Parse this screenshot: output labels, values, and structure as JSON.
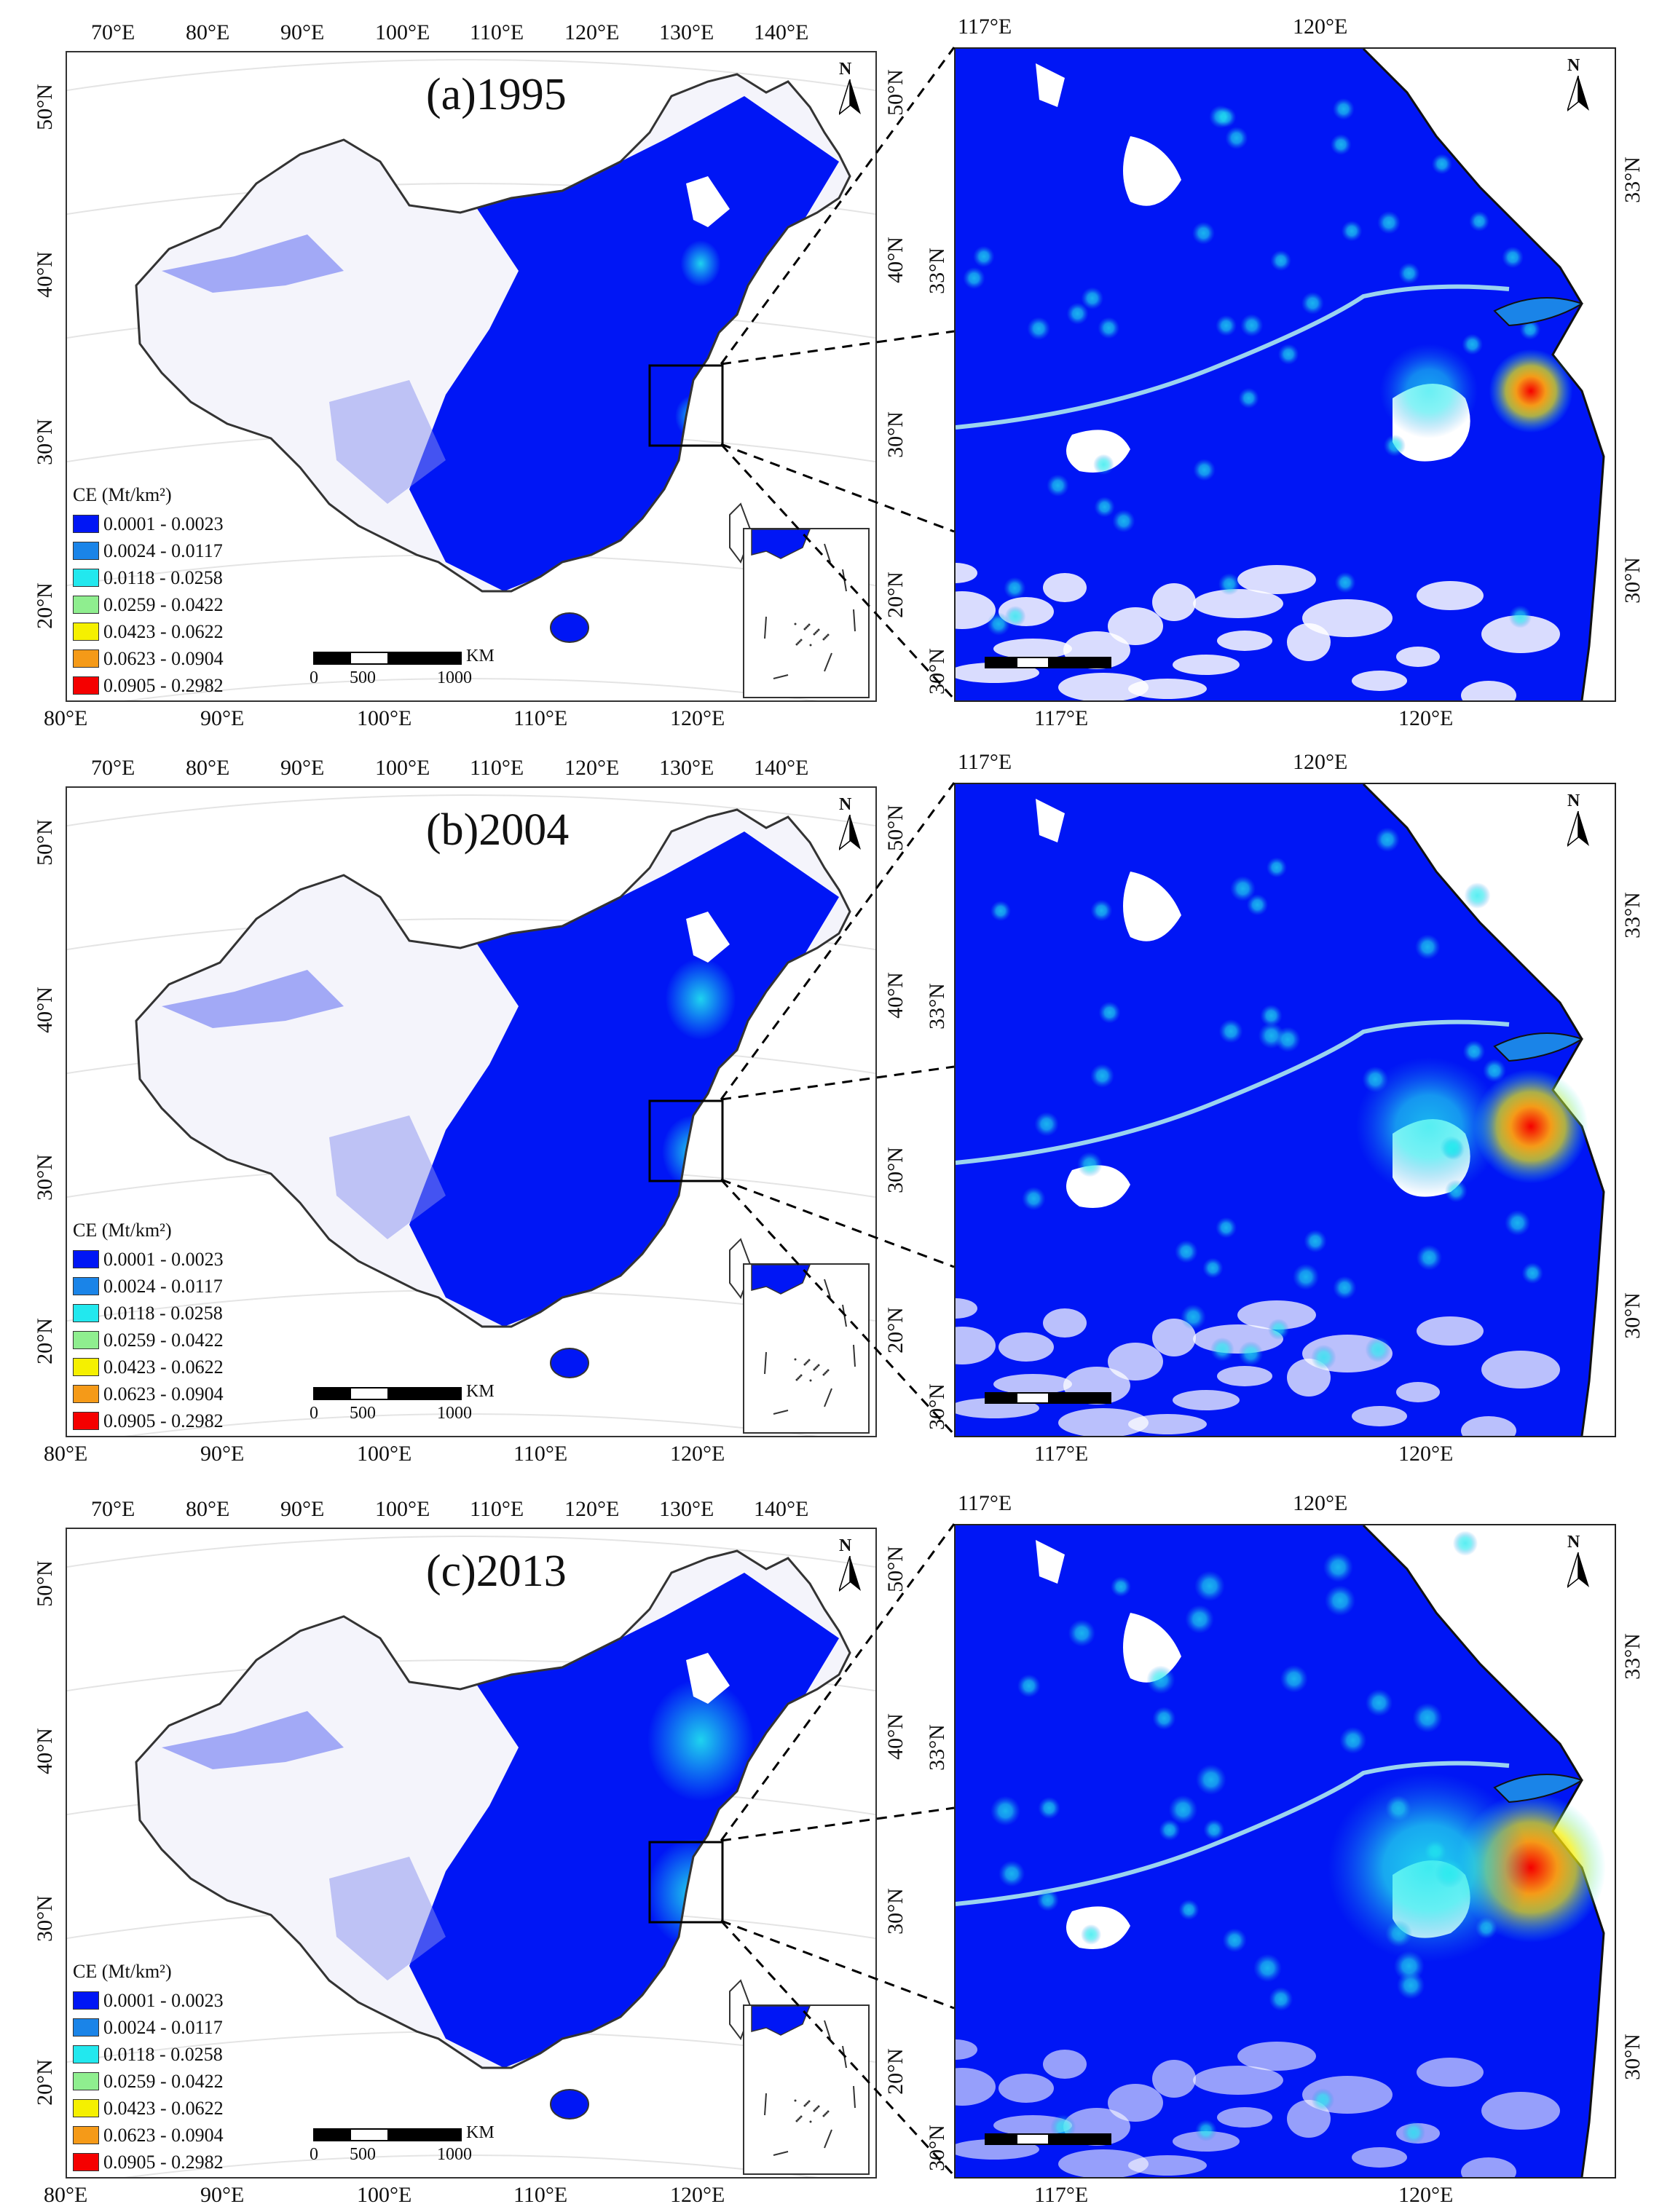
{
  "panels": [
    {
      "label": "(a)1995",
      "intensity": 0.25
    },
    {
      "label": "(b)2004",
      "intensity": 0.55
    },
    {
      "label": "(c)2013",
      "intensity": 0.9
    }
  ],
  "china_map": {
    "top_lon_ticks": [
      "70°E",
      "80°E",
      "90°E",
      "100°E",
      "110°E",
      "120°E",
      "130°E",
      "140°E"
    ],
    "bottom_lon_ticks": [
      "80°E",
      "90°E",
      "100°E",
      "110°E",
      "120°E"
    ],
    "left_lat_ticks": [
      "50°N",
      "40°N",
      "30°N",
      "20°N"
    ],
    "right_lat_ticks": [
      "50°N",
      "40°N",
      "30°N",
      "20°N"
    ]
  },
  "zoom_map": {
    "top_lon_ticks": [
      "117°E",
      "120°E"
    ],
    "bottom_lon_ticks": [
      "117°E",
      "120°E"
    ],
    "left_lat_ticks": [
      "33°N",
      "30°N"
    ],
    "right_lat_ticks": [
      "33°N",
      "30°N"
    ]
  },
  "north_label": "N",
  "legend": {
    "title": "CE (Mt/km²)",
    "items": [
      {
        "label": "0.0001 - 0.0023",
        "color": "#0016f5"
      },
      {
        "label": "0.0024 - 0.0117",
        "color": "#1a84e8"
      },
      {
        "label": "0.0118 - 0.0258",
        "color": "#22e8ee"
      },
      {
        "label": "0.0259 - 0.0422",
        "color": "#8fee8f"
      },
      {
        "label": "0.0423 - 0.0622",
        "color": "#f5f000"
      },
      {
        "label": "0.0623 - 0.0904",
        "color": "#f59a18"
      },
      {
        "label": "0.0905 - 0.2982",
        "color": "#f50000"
      }
    ]
  },
  "scale_bar": {
    "unit": "KM",
    "labels": [
      "0",
      "500",
      "1000"
    ]
  }
}
